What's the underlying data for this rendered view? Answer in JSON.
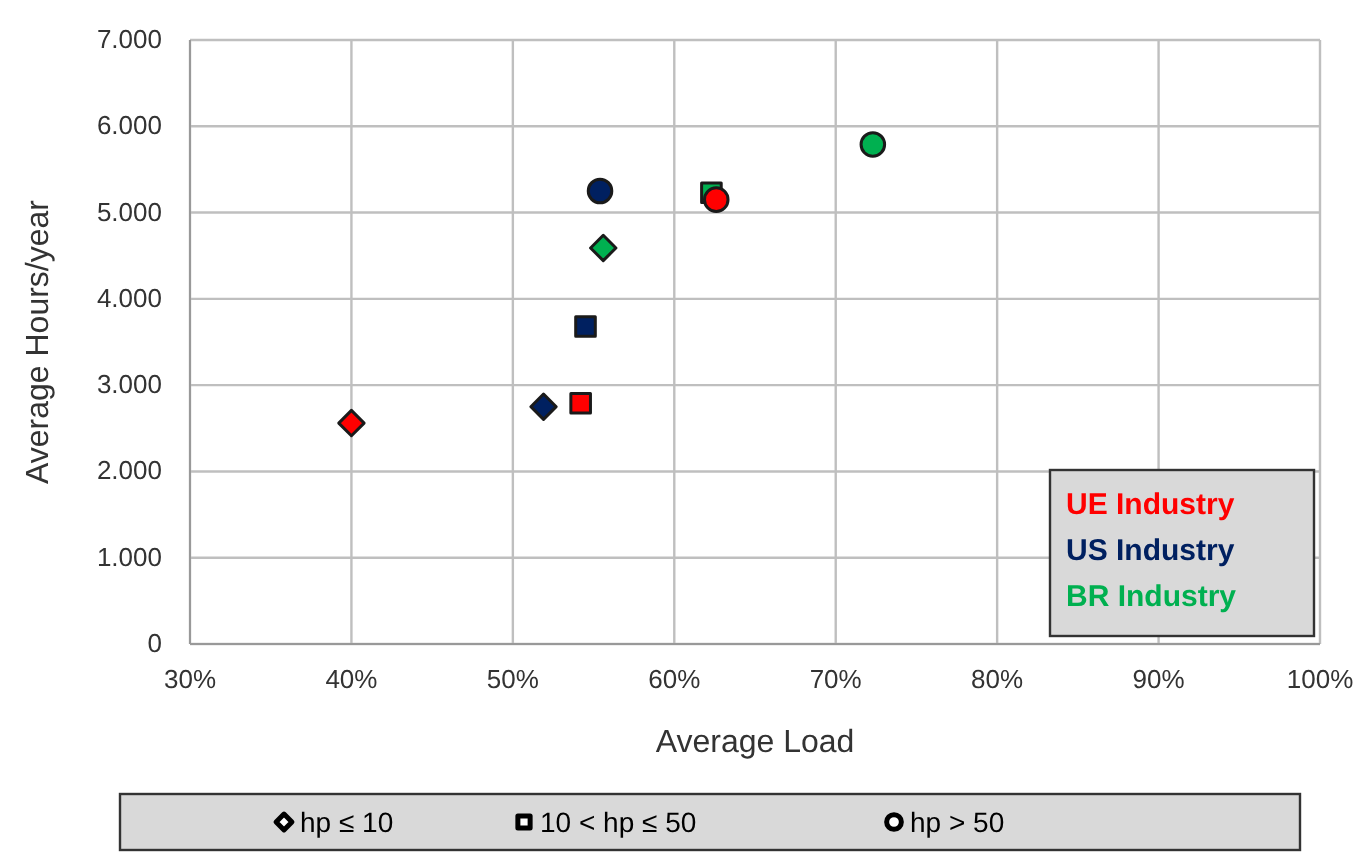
{
  "chart_data": {
    "type": "scatter",
    "xlabel": "Average Load",
    "ylabel": "Average Hours/year",
    "xlim": [
      30,
      100
    ],
    "xticks": [
      {
        "value": 30,
        "label": "30%"
      },
      {
        "value": 40,
        "label": "40%"
      },
      {
        "value": 50,
        "label": "50%"
      },
      {
        "value": 60,
        "label": "60%"
      },
      {
        "value": 70,
        "label": "70%"
      },
      {
        "value": 80,
        "label": "80%"
      },
      {
        "value": 90,
        "label": "90%"
      },
      {
        "value": 100,
        "label": "100%"
      }
    ],
    "ylim": [
      0,
      7000
    ],
    "yticks": [
      {
        "value": 0,
        "label": "0"
      },
      {
        "value": 1000,
        "label": "1.000"
      },
      {
        "value": 2000,
        "label": "2.000"
      },
      {
        "value": 3000,
        "label": "3.000"
      },
      {
        "value": 4000,
        "label": "4.000"
      },
      {
        "value": 5000,
        "label": "5.000"
      },
      {
        "value": 6000,
        "label": "6.000"
      },
      {
        "value": 7000,
        "label": "7.000"
      }
    ],
    "grid": true,
    "legend": "bottom right",
    "annotations": [
      "hp ≤ 10",
      "10 < hp ≤ 50",
      "hp > 50"
    ],
    "marker": [
      "diamond",
      "square",
      "circle"
    ],
    "series": [
      {
        "name": "UE Industry",
        "color": "#ff0000",
        "x": [
          40,
          54.2,
          62.6
        ],
        "values": [
          2560,
          2790,
          5150
        ]
      },
      {
        "name": "US Industry",
        "color": "#002060",
        "x": [
          51.9,
          54.5,
          55.4
        ],
        "values": [
          2750,
          3680,
          5250
        ]
      },
      {
        "name": "BR Industry",
        "color": "#00b050",
        "x": [
          55.6,
          62.3,
          72.3
        ],
        "values": [
          4590,
          5230,
          5790
        ]
      }
    ]
  }
}
